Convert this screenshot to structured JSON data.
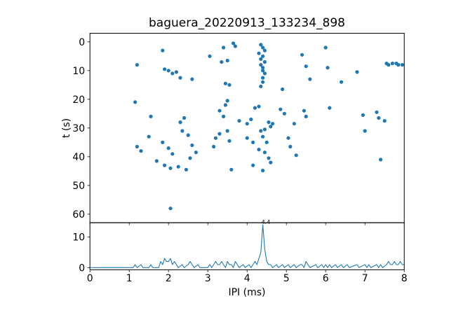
{
  "chart_data": {
    "type": "scatter",
    "title": "baguera_20220913_133234_898",
    "xlabel": "IPI (ms)",
    "ylabel": "t (s)",
    "color": "#1f77b4",
    "x_ticks": [
      0,
      1,
      2,
      3,
      4,
      5,
      6,
      7,
      8
    ],
    "legend": "none",
    "grid": false,
    "top_panel": {
      "type": "scatter",
      "xlim": [
        0,
        8
      ],
      "ylim": [
        -3,
        63
      ],
      "y_axis_inverted": true,
      "y_ticks": [
        0,
        10,
        20,
        30,
        40,
        50,
        60
      ],
      "points": [
        [
          1.2,
          8
        ],
        [
          1.85,
          3
        ],
        [
          1.9,
          9.5
        ],
        [
          2.0,
          10
        ],
        [
          2.1,
          11
        ],
        [
          2.2,
          10.5
        ],
        [
          2.3,
          12.5
        ],
        [
          2.6,
          13
        ],
        [
          3.05,
          5
        ],
        [
          3.35,
          7
        ],
        [
          3.4,
          2
        ],
        [
          3.5,
          6.5
        ],
        [
          3.45,
          14.5
        ],
        [
          3.55,
          15
        ],
        [
          3.65,
          0.5
        ],
        [
          3.7,
          1.5
        ],
        [
          4.3,
          4
        ],
        [
          4.35,
          1
        ],
        [
          4.35,
          6
        ],
        [
          4.35,
          8
        ],
        [
          4.4,
          2
        ],
        [
          4.4,
          5
        ],
        [
          4.4,
          9
        ],
        [
          4.4,
          10
        ],
        [
          4.4,
          12.5
        ],
        [
          4.45,
          3
        ],
        [
          4.45,
          7
        ],
        [
          4.45,
          11
        ],
        [
          4.4,
          14
        ],
        [
          4.35,
          15.5
        ],
        [
          4.9,
          16.5
        ],
        [
          5.4,
          4.5
        ],
        [
          5.5,
          8.5
        ],
        [
          5.6,
          13
        ],
        [
          6.0,
          2
        ],
        [
          6.05,
          9
        ],
        [
          6.4,
          14
        ],
        [
          6.8,
          10.5
        ],
        [
          7.55,
          7.5
        ],
        [
          7.6,
          8
        ],
        [
          7.7,
          7.5
        ],
        [
          7.8,
          7.5
        ],
        [
          7.85,
          8
        ],
        [
          7.95,
          8
        ],
        [
          1.15,
          21
        ],
        [
          1.55,
          26
        ],
        [
          2.3,
          28
        ],
        [
          2.4,
          26.5
        ],
        [
          3.3,
          24
        ],
        [
          3.4,
          26
        ],
        [
          3.45,
          22
        ],
        [
          3.5,
          20.5
        ],
        [
          3.8,
          27.5
        ],
        [
          4.0,
          28.5
        ],
        [
          4.1,
          27
        ],
        [
          4.2,
          23
        ],
        [
          4.3,
          22.5
        ],
        [
          4.55,
          28
        ],
        [
          4.6,
          29.5
        ],
        [
          4.65,
          28.5
        ],
        [
          4.85,
          23.5
        ],
        [
          4.95,
          25
        ],
        [
          5.2,
          28.5
        ],
        [
          5.45,
          24
        ],
        [
          5.5,
          26
        ],
        [
          6.1,
          23
        ],
        [
          6.95,
          25.5
        ],
        [
          7.0,
          31
        ],
        [
          7.3,
          24.5
        ],
        [
          7.35,
          26.5
        ],
        [
          7.5,
          27.5
        ],
        [
          1.5,
          33
        ],
        [
          1.85,
          35
        ],
        [
          2.35,
          31
        ],
        [
          2.5,
          32.5
        ],
        [
          3.2,
          33.5
        ],
        [
          3.3,
          32
        ],
        [
          3.5,
          31
        ],
        [
          3.55,
          34.5
        ],
        [
          4.0,
          33.5
        ],
        [
          4.15,
          35
        ],
        [
          4.35,
          31
        ],
        [
          4.45,
          30.5
        ],
        [
          4.4,
          33
        ],
        [
          4.5,
          35
        ],
        [
          5.05,
          33.5
        ],
        [
          1.2,
          36.5
        ],
        [
          1.3,
          38
        ],
        [
          2.0,
          37
        ],
        [
          2.1,
          39
        ],
        [
          2.6,
          36
        ],
        [
          2.7,
          38.5
        ],
        [
          3.15,
          36.5
        ],
        [
          4.3,
          37.5
        ],
        [
          4.45,
          38.5
        ],
        [
          5.1,
          36.5
        ],
        [
          5.25,
          39.5
        ],
        [
          1.7,
          41.5
        ],
        [
          1.9,
          43
        ],
        [
          2.05,
          44
        ],
        [
          2.25,
          43.5
        ],
        [
          2.45,
          44.5
        ],
        [
          2.55,
          40.5
        ],
        [
          3.6,
          44.5
        ],
        [
          4.15,
          43
        ],
        [
          4.4,
          44.8
        ],
        [
          4.55,
          40.5
        ],
        [
          4.6,
          42
        ],
        [
          7.4,
          41
        ],
        [
          2.05,
          58
        ]
      ]
    },
    "bottom_panel": {
      "type": "line",
      "xlim": [
        0,
        8
      ],
      "ylim": [
        -0.7,
        14.7
      ],
      "y_ticks": [
        0,
        10
      ],
      "annotation": {
        "text": "4.4",
        "x": 4.4,
        "y": 14
      },
      "points": [
        [
          0,
          0
        ],
        [
          1.1,
          0
        ],
        [
          1.15,
          1
        ],
        [
          1.2,
          0
        ],
        [
          1.3,
          1
        ],
        [
          1.35,
          0
        ],
        [
          1.5,
          0
        ],
        [
          1.55,
          1
        ],
        [
          1.6,
          0
        ],
        [
          1.75,
          0
        ],
        [
          1.8,
          2
        ],
        [
          1.85,
          1
        ],
        [
          1.9,
          3
        ],
        [
          1.95,
          2
        ],
        [
          2.0,
          2
        ],
        [
          2.05,
          3
        ],
        [
          2.1,
          1
        ],
        [
          2.15,
          2
        ],
        [
          2.2,
          1
        ],
        [
          2.25,
          0
        ],
        [
          2.35,
          1
        ],
        [
          2.4,
          0
        ],
        [
          2.5,
          1
        ],
        [
          2.55,
          2
        ],
        [
          2.6,
          1
        ],
        [
          2.65,
          0
        ],
        [
          2.75,
          1
        ],
        [
          2.8,
          0
        ],
        [
          3.0,
          0
        ],
        [
          3.05,
          1
        ],
        [
          3.1,
          0
        ],
        [
          3.15,
          1
        ],
        [
          3.2,
          2
        ],
        [
          3.25,
          1
        ],
        [
          3.3,
          1
        ],
        [
          3.35,
          2
        ],
        [
          3.4,
          1
        ],
        [
          3.45,
          0
        ],
        [
          3.5,
          2
        ],
        [
          3.55,
          1
        ],
        [
          3.6,
          1
        ],
        [
          3.65,
          0
        ],
        [
          3.7,
          2
        ],
        [
          3.75,
          1
        ],
        [
          3.8,
          0
        ],
        [
          3.9,
          1
        ],
        [
          3.95,
          0
        ],
        [
          4.05,
          1
        ],
        [
          4.1,
          0
        ],
        [
          4.15,
          1
        ],
        [
          4.2,
          2
        ],
        [
          4.25,
          1
        ],
        [
          4.3,
          3
        ],
        [
          4.35,
          5
        ],
        [
          4.4,
          14
        ],
        [
          4.45,
          6
        ],
        [
          4.5,
          2
        ],
        [
          4.55,
          1
        ],
        [
          4.6,
          1
        ],
        [
          4.65,
          0
        ],
        [
          4.75,
          1
        ],
        [
          4.8,
          0
        ],
        [
          4.9,
          1
        ],
        [
          4.95,
          0
        ],
        [
          5.05,
          1
        ],
        [
          5.1,
          0
        ],
        [
          5.2,
          1
        ],
        [
          5.25,
          0
        ],
        [
          5.35,
          1
        ],
        [
          5.4,
          1
        ],
        [
          5.45,
          0
        ],
        [
          5.5,
          2
        ],
        [
          5.55,
          1
        ],
        [
          5.6,
          0
        ],
        [
          5.75,
          1
        ],
        [
          5.8,
          0
        ],
        [
          5.9,
          1
        ],
        [
          5.95,
          0
        ],
        [
          6.0,
          1
        ],
        [
          6.05,
          0
        ],
        [
          6.1,
          1
        ],
        [
          6.15,
          0
        ],
        [
          6.25,
          1
        ],
        [
          6.3,
          0
        ],
        [
          6.4,
          1
        ],
        [
          6.45,
          0
        ],
        [
          6.55,
          1
        ],
        [
          6.6,
          0
        ],
        [
          6.8,
          1
        ],
        [
          6.85,
          0
        ],
        [
          7.0,
          1
        ],
        [
          7.05,
          0
        ],
        [
          7.1,
          1
        ],
        [
          7.15,
          0
        ],
        [
          7.3,
          1
        ],
        [
          7.35,
          0
        ],
        [
          7.4,
          1
        ],
        [
          7.45,
          0
        ],
        [
          7.55,
          1
        ],
        [
          7.6,
          2
        ],
        [
          7.65,
          1
        ],
        [
          7.7,
          1
        ],
        [
          7.75,
          2
        ],
        [
          7.8,
          1
        ],
        [
          7.85,
          1
        ],
        [
          7.9,
          2
        ],
        [
          7.95,
          1
        ],
        [
          8,
          1
        ]
      ]
    }
  }
}
